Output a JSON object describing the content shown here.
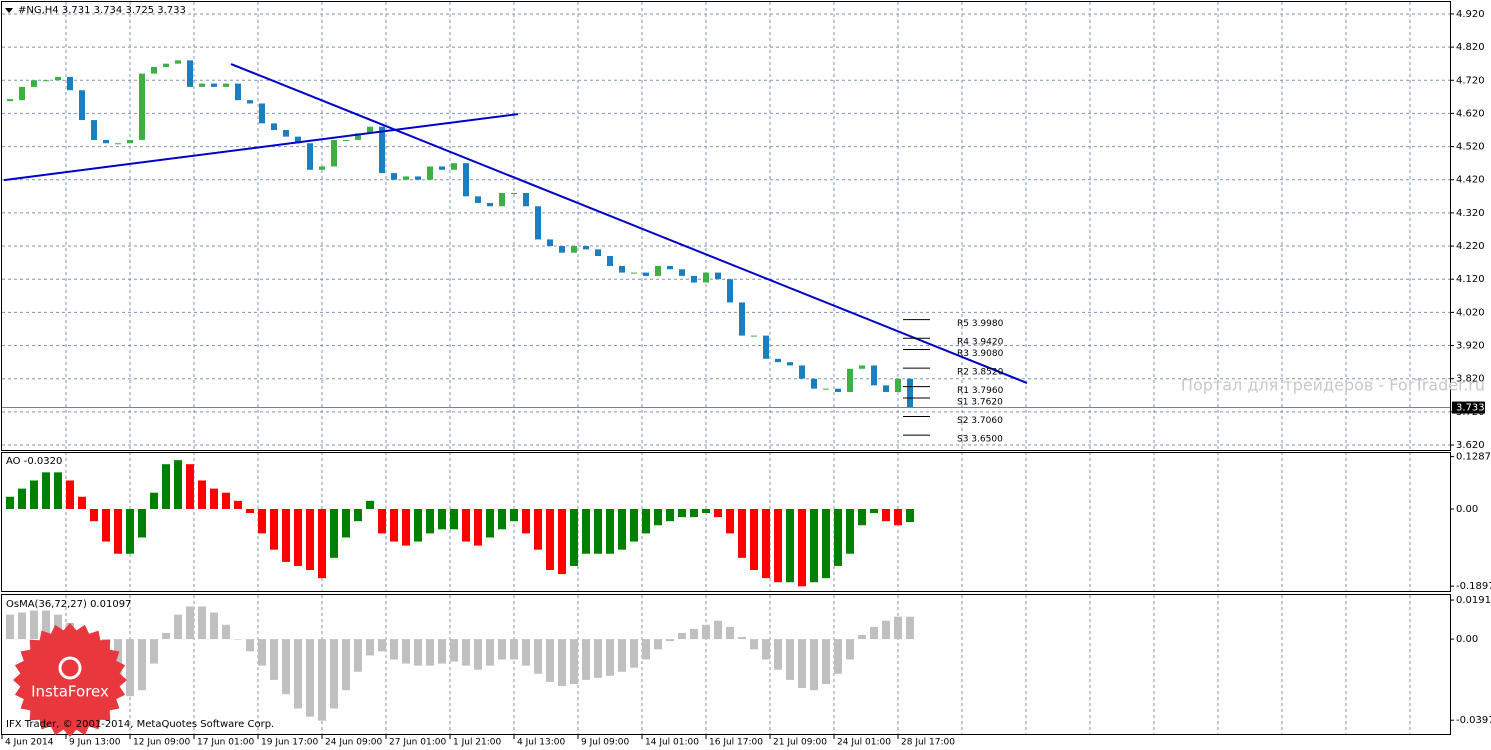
{
  "chart_data": [
    {
      "type": "candlestick",
      "title": "#NG,H4  3.731 3.734 3.725 3.733",
      "values": [
        4.66,
        4.7,
        4.72,
        4.72,
        4.73,
        4.69,
        4.6,
        4.54,
        4.53,
        4.53,
        4.54,
        4.74,
        4.76,
        4.77,
        4.78,
        4.7,
        4.71,
        4.7,
        4.71,
        4.66,
        4.65,
        4.59,
        4.57,
        4.55,
        4.53,
        4.45,
        4.46,
        4.54,
        4.54,
        4.56,
        4.58,
        4.44,
        4.42,
        4.43,
        4.42,
        4.46,
        4.45,
        4.47,
        4.37,
        4.35,
        4.34,
        4.38,
        4.38,
        4.34,
        4.24,
        4.22,
        4.2,
        4.22,
        4.21,
        4.19,
        4.16,
        4.14,
        4.14,
        4.13,
        4.16,
        4.15,
        4.13,
        4.11,
        4.14,
        4.12,
        4.05,
        3.95,
        3.95,
        3.88,
        3.87,
        3.86,
        3.82,
        3.79,
        3.79,
        3.78,
        3.85,
        3.86,
        3.8,
        3.78,
        3.82,
        3.733
      ],
      "colors": {
        "up": "#3cb043",
        "down": "#1a7fc1"
      },
      "ylim": [
        3.605,
        4.956
      ],
      "yticks": [
        {
          "value": 4.92,
          "label": "4.920"
        },
        {
          "value": 4.82,
          "label": "4.820"
        },
        {
          "value": 4.72,
          "label": "4.720"
        },
        {
          "value": 4.62,
          "label": "4.620"
        },
        {
          "value": 4.52,
          "label": "4.520"
        },
        {
          "value": 4.42,
          "label": "4.420"
        },
        {
          "value": 4.32,
          "label": "4.320"
        },
        {
          "value": 4.22,
          "label": "4.220"
        },
        {
          "value": 4.12,
          "label": "4.120"
        },
        {
          "value": 4.02,
          "label": "4.020"
        },
        {
          "value": 3.92,
          "label": "3.920"
        },
        {
          "value": 3.82,
          "label": "3.820"
        },
        {
          "value": 3.72,
          "label": "3.720"
        },
        {
          "value": 3.62,
          "label": "3.620"
        }
      ],
      "grid": true,
      "last_price": {
        "value": 3.733,
        "label": "3.733"
      },
      "trendlines": [
        {
          "color": "#0000c8",
          "x": [
            -0.5,
            42.33
          ],
          "y": [
            4.419,
            4.618
          ]
        },
        {
          "color": "#0000c8",
          "x": [
            18.42,
            84.75
          ],
          "y": [
            4.769,
            3.807
          ]
        }
      ],
      "pivots": [
        {
          "label": "R5 3.9980",
          "value": 3.998
        },
        {
          "label": "R4 3.9420",
          "value": 3.942
        },
        {
          "label": "R3 3.9080",
          "value": 3.908
        },
        {
          "label": "R2 3.8520",
          "value": 3.852
        },
        {
          "label": "R1 3.7960",
          "value": 3.796
        },
        {
          "label": "S1 3.7620",
          "value": 3.762
        },
        {
          "label": "S2 3.7060",
          "value": 3.706
        },
        {
          "label": "S3 3.6500",
          "value": 3.65
        }
      ],
      "x_labels": [
        "4 Jun 2014",
        "9 Jun 13:00",
        "12 Jun 09:00",
        "17 Jun 01:00",
        "19 Jun 17:00",
        "24 Jun 09:00",
        "27 Jun 01:00",
        "1 Jul 21:00",
        "4 Jul 13:00",
        "9 Jul 09:00",
        "14 Jul 01:00",
        "16 Jul 17:00",
        "21 Jul 09:00",
        "24 Jul 01:00",
        "28 Jul 17:00"
      ]
    },
    {
      "type": "histogram",
      "title": "AO -0.0320",
      "values": [
        0.03,
        0.05,
        0.07,
        0.09,
        0.09,
        0.07,
        0.03,
        -0.03,
        -0.08,
        -0.11,
        -0.11,
        -0.07,
        0.04,
        0.11,
        0.12,
        0.11,
        0.07,
        0.05,
        0.04,
        0.02,
        -0.01,
        -0.06,
        -0.1,
        -0.13,
        -0.14,
        -0.15,
        -0.17,
        -0.12,
        -0.07,
        -0.03,
        0.02,
        -0.06,
        -0.08,
        -0.09,
        -0.08,
        -0.06,
        -0.05,
        -0.05,
        -0.08,
        -0.09,
        -0.07,
        -0.05,
        -0.03,
        -0.06,
        -0.1,
        -0.15,
        -0.16,
        -0.14,
        -0.11,
        -0.11,
        -0.11,
        -0.1,
        -0.08,
        -0.06,
        -0.04,
        -0.03,
        -0.02,
        -0.02,
        -0.01,
        -0.02,
        -0.06,
        -0.12,
        -0.15,
        -0.17,
        -0.18,
        -0.18,
        -0.19,
        -0.18,
        -0.17,
        -0.14,
        -0.11,
        -0.04,
        -0.01,
        -0.03,
        -0.04,
        -0.032
      ],
      "colors": {
        "up": "#008000",
        "down": "#ff0000"
      },
      "ylim": [
        -0.204,
        0.14
      ],
      "yticks": [
        0.1287,
        {
          "value": 0,
          "label": "0.00"
        },
        -0.1897
      ],
      "grid": false
    },
    {
      "type": "histogram",
      "title": "OsMA(36,72,27) 0.01097",
      "values": [
        0.012,
        0.013,
        0.014,
        0.014,
        0.012,
        0.008,
        0.002,
        -0.006,
        -0.014,
        -0.022,
        -0.028,
        -0.025,
        -0.012,
        0.003,
        0.012,
        0.016,
        0.016,
        0.013,
        0.007,
        0.0,
        -0.006,
        -0.013,
        -0.02,
        -0.027,
        -0.034,
        -0.038,
        -0.04,
        -0.034,
        -0.025,
        -0.016,
        -0.008,
        -0.006,
        -0.01,
        -0.012,
        -0.013,
        -0.013,
        -0.012,
        -0.011,
        -0.013,
        -0.015,
        -0.013,
        -0.01,
        -0.01,
        -0.013,
        -0.017,
        -0.021,
        -0.023,
        -0.022,
        -0.02,
        -0.019,
        -0.018,
        -0.016,
        -0.014,
        -0.01,
        -0.005,
        -0.001,
        0.003,
        0.005,
        0.007,
        0.009,
        0.006,
        0.001,
        -0.005,
        -0.01,
        -0.015,
        -0.02,
        -0.024,
        -0.025,
        -0.022,
        -0.017,
        -0.01,
        0.002,
        0.006,
        0.009,
        0.011,
        0.01097
      ],
      "color": "#c0c0c0",
      "ylim": [
        -0.047,
        0.0216
      ],
      "yticks": [
        0.01912,
        {
          "value": 0,
          "label": "0.00"
        },
        -0.03975
      ],
      "grid": false
    }
  ],
  "watermark": "Портал для трейдеров - ForTrader.ru",
  "footer": "IFX Trader, © 2001-2014, MetaQuotes Software Corp.",
  "logo": "InstaForex"
}
